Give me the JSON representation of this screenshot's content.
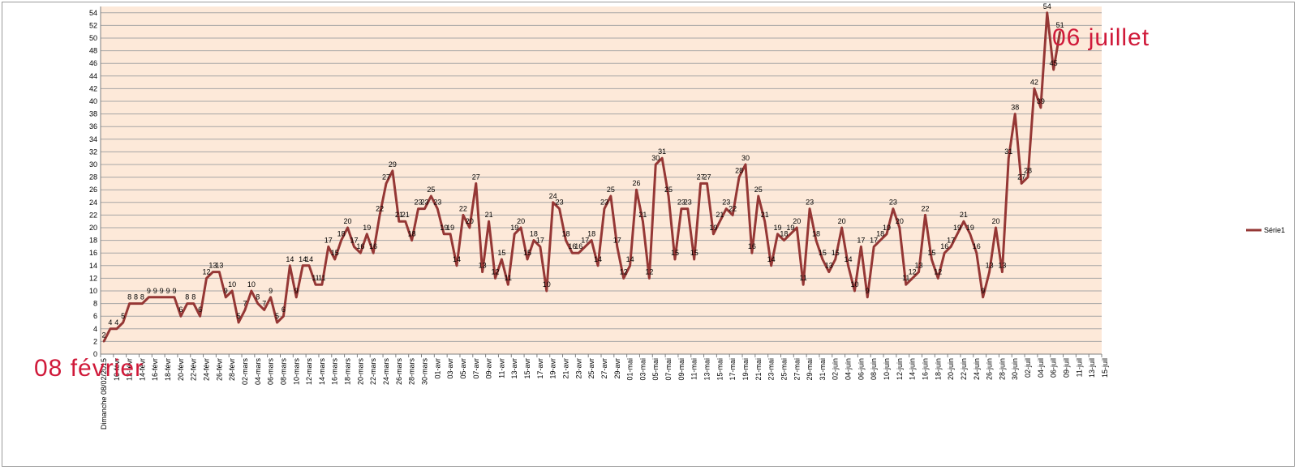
{
  "chart_data": {
    "type": "line",
    "title": "",
    "xlabel": "",
    "ylabel": "",
    "ylim": [
      0,
      55
    ],
    "ytick_step": 2,
    "grid": true,
    "legend_placement": "right",
    "colors": {
      "plot_bg": "#fde9d9",
      "line": "#953735",
      "grid": "#a6a6a6",
      "annotation": "#d01a3a"
    },
    "series": [
      {
        "name": "Série1",
        "values": [
          2,
          4,
          4,
          5,
          8,
          8,
          8,
          9,
          9,
          9,
          9,
          9,
          6,
          8,
          8,
          6,
          12,
          13,
          13,
          9,
          10,
          5,
          7,
          10,
          8,
          7,
          9,
          5,
          6,
          14,
          9,
          14,
          14,
          11,
          11,
          17,
          15,
          18,
          20,
          17,
          16,
          19,
          16,
          22,
          27,
          29,
          21,
          21,
          18,
          23,
          23,
          25,
          23,
          19,
          19,
          14,
          22,
          20,
          27,
          13,
          21,
          12,
          15,
          11,
          19,
          20,
          15,
          18,
          17,
          10,
          24,
          23,
          18,
          16,
          16,
          17,
          18,
          14,
          23,
          25,
          17,
          12,
          14,
          26,
          21,
          12,
          30,
          31,
          25,
          15,
          23,
          23,
          15,
          27,
          27,
          19,
          21,
          23,
          22,
          28,
          30,
          16,
          25,
          21,
          14,
          19,
          18,
          19,
          20,
          11,
          23,
          18,
          15,
          13,
          15,
          20,
          14,
          10,
          17,
          9,
          17,
          18,
          19,
          23,
          20,
          11,
          12,
          13,
          22,
          15,
          12,
          16,
          17,
          19,
          21,
          19,
          16,
          9,
          13,
          20,
          13,
          31,
          38,
          27,
          28,
          42,
          39,
          54,
          45,
          51
        ]
      }
    ],
    "x_tick_labels": [
      "Dimanche 08/02/2015",
      "10-févr",
      "12-févr",
      "14-févr",
      "16-févr",
      "18-févr",
      "20-févr",
      "22-févr",
      "24-févr",
      "26-févr",
      "28-févr",
      "02-mars",
      "04-mars",
      "06-mars",
      "08-mars",
      "10-mars",
      "12-mars",
      "14-mars",
      "16-mars",
      "18-mars",
      "20-mars",
      "22-mars",
      "24-mars",
      "26-mars",
      "28-mars",
      "30-mars",
      "01-avr",
      "03-avr",
      "05-avr",
      "07-avr",
      "09-avr",
      "11-avr",
      "13-avr",
      "15-avr",
      "17-avr",
      "19-avr",
      "21-avr",
      "23-avr",
      "25-avr",
      "27-avr",
      "29-avr",
      "01-mai",
      "03-mai",
      "05-mai",
      "07-mai",
      "09-mai",
      "11-mai",
      "13-mai",
      "15-mai",
      "17-mai",
      "19-mai",
      "21-mai",
      "23-mai",
      "25-mai",
      "27-mai",
      "29-mai",
      "31-mai",
      "02-juin",
      "04-juin",
      "06-juin",
      "08-juin",
      "10-juin",
      "12-juin",
      "14-juin",
      "16-juin",
      "18-juin",
      "20-juin",
      "22-juin",
      "24-juin",
      "26-juin",
      "28-juin",
      "30-juin",
      "02-juil",
      "04-juil",
      "06-juil",
      "09-juil",
      "11-juil",
      "13-juil",
      "15-juil"
    ],
    "annotations": [
      {
        "text": "08 février"
      },
      {
        "text": "06 juillet"
      }
    ]
  }
}
